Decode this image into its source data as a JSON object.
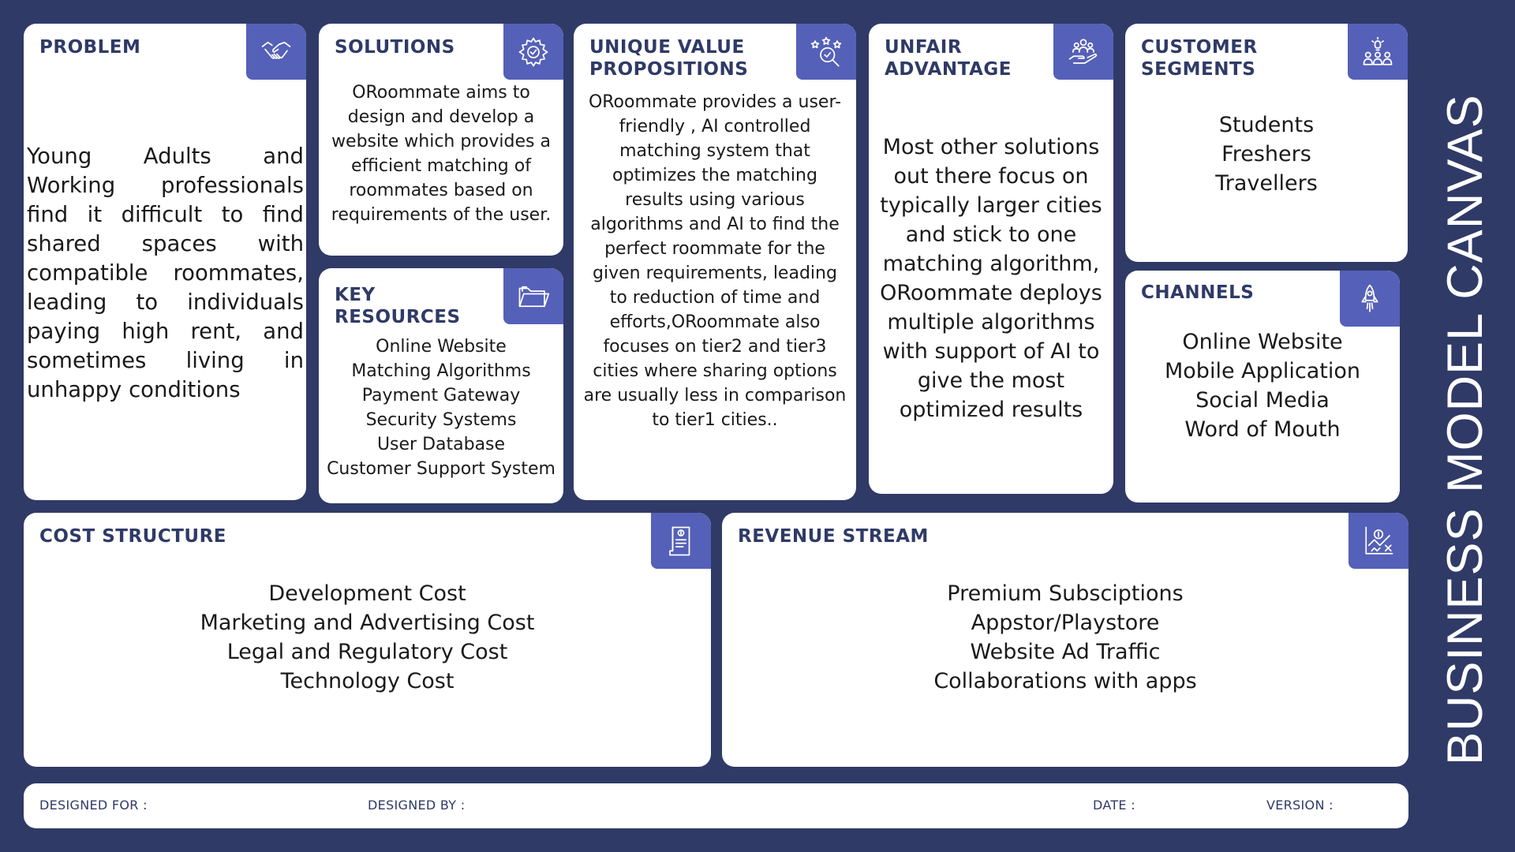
{
  "side_title": "BUSINESS MODEL CANVAS",
  "colors": {
    "background": "#2f3a67",
    "card": "#ffffff",
    "icon_box": "#5560b8",
    "title": "#2f3a67"
  },
  "problem": {
    "title": "PROBLEM",
    "icon": "handshake-icon",
    "text": "Young Adults and Working professionals find it difficult to find shared spaces with compatible roommates, leading to individuals paying high rent, and sometimes living in unhappy conditions"
  },
  "solutions": {
    "title": "SOLUTIONS",
    "icon": "gear-icon",
    "lines": [
      "ORoommate aims to",
      "design and develop a",
      "website which provides a",
      "efficient matching of",
      "roommates based on",
      "requirements of the user."
    ]
  },
  "key_resources": {
    "title_line1": "KEY",
    "title_line2": "RESOURCES",
    "icon": "folder-icon",
    "lines": [
      "Online Website",
      "Matching Algorithms",
      "Payment Gateway",
      "Security Systems",
      "User Database",
      "Customer Support System"
    ]
  },
  "uvp": {
    "title_line1": "UNIQUE VALUE",
    "title_line2": "PROPOSITIONS",
    "icon": "value-search-icon",
    "lines": [
      "ORoommate provides a user-",
      "friendly , AI controlled",
      "matching system that",
      "optimizes the matching",
      "results using various",
      "algorithms and AI to find the",
      "perfect roommate for the",
      "given requirements, leading",
      "to reduction of time and",
      "efforts,ORoommate also",
      "focuses on tier2 and tier3",
      "cities where sharing options",
      "are usually less in comparison",
      "to tier1 cities.."
    ]
  },
  "unfair_advantage": {
    "title_line1": "UNFAIR",
    "title_line2": "ADVANTAGE",
    "icon": "hand-people-icon",
    "lines": [
      "Most other solutions",
      "out there focus on",
      "typically larger cities",
      "and stick to one",
      "matching algorithm,",
      "ORoommate deploys",
      "multiple algorithms",
      "with support of AI to",
      "give the most",
      "optimized results"
    ]
  },
  "customer_segments": {
    "title_line1": "CUSTOMER",
    "title_line2": "SEGMENTS",
    "icon": "group-idea-icon",
    "lines": [
      "Students",
      "Freshers",
      "Travellers"
    ]
  },
  "channels": {
    "title": "CHANNELS",
    "icon": "rocket-icon",
    "lines": [
      "Online Website",
      "Mobile Application",
      "Social Media",
      "Word of Mouth"
    ]
  },
  "cost_structure": {
    "title": "COST STRUCTURE",
    "icon": "invoice-icon",
    "lines": [
      "Development Cost",
      "Marketing and Advertising Cost",
      "Legal and Regulatory Cost",
      "Technology Cost"
    ]
  },
  "revenue_stream": {
    "title": "REVENUE STREAM",
    "icon": "revenue-chart-icon",
    "lines": [
      "Premium Subsciptions",
      "Appstor/Playstore",
      "Website Ad Traffic",
      "Collaborations with apps"
    ]
  },
  "footer": {
    "designed_for": "DESIGNED FOR :",
    "designed_by": "DESIGNED BY :",
    "date": "DATE :",
    "version": "VERSION :"
  }
}
